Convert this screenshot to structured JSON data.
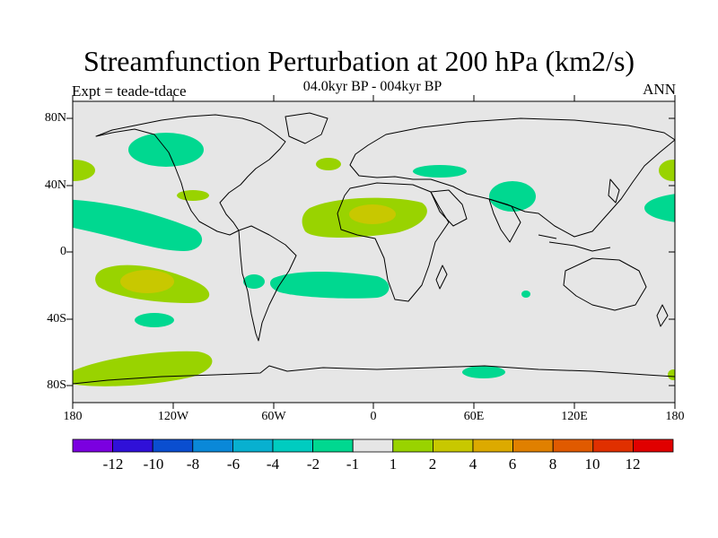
{
  "title": "Streamfunction Perturbation at 200 hPa (km2/s)",
  "subtitle": "04.0kyr BP - 004kyr BP",
  "left_label": "Expt = teade-tdace",
  "right_label": "ANN",
  "lat_labels": [
    "80N",
    "40N",
    "0",
    "40S",
    "80S"
  ],
  "lon_labels": [
    "180",
    "120W",
    "60W",
    "0",
    "60E",
    "120E",
    "180"
  ],
  "colorbar": {
    "colors": [
      "#7b00e0",
      "#3010d8",
      "#0a4ed0",
      "#0a88d8",
      "#08b0d0",
      "#00ccc0",
      "#00d890",
      "#e6e6e6",
      "#99d300",
      "#c8c800",
      "#dcaa00",
      "#e08000",
      "#e05a00",
      "#e03000",
      "#e00000"
    ],
    "labels": [
      "-12",
      "-10",
      "-8",
      "-6",
      "-4",
      "-2",
      "-1",
      "1",
      "2",
      "4",
      "6",
      "8",
      "10",
      "12"
    ]
  },
  "palette": {
    "background": "#e6e6e6",
    "neg_weak": "#00d890",
    "pos_weak": "#99d300",
    "pos_mid": "#c8c800",
    "coast": "#000000"
  }
}
